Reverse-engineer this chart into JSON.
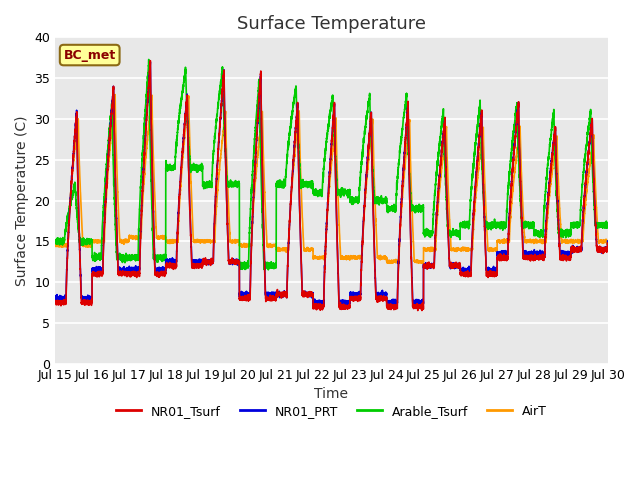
{
  "title": "Surface Temperature",
  "xlabel": "Time",
  "ylabel": "Surface Temperature (C)",
  "ylim": [
    0,
    40
  ],
  "xlim": [
    0,
    360
  ],
  "annotation_text": "BC_met",
  "legend": [
    "NR01_Tsurf",
    "NR01_PRT",
    "Arable_Tsurf",
    "AirT"
  ],
  "colors": [
    "#dd0000",
    "#0000dd",
    "#00cc00",
    "#ff9900"
  ],
  "xtick_labels": [
    "Jul 15",
    "Jul 16",
    "Jul 17",
    "Jul 18",
    "Jul 19",
    "Jul 20",
    "Jul 21",
    "Jul 22",
    "Jul 23",
    "Jul 24",
    "Jul 25",
    "Jul 26",
    "Jul 27",
    "Jul 28",
    "Jul 29",
    "Jul 30"
  ],
  "xtick_positions": [
    0,
    24,
    48,
    72,
    96,
    120,
    144,
    168,
    192,
    216,
    240,
    264,
    288,
    312,
    336,
    360
  ],
  "ytick_positions": [
    0,
    5,
    10,
    15,
    20,
    25,
    30,
    35,
    40
  ],
  "bg_color": "#e8e8e8",
  "fig_color": "#ffffff",
  "linewidth": 1.2,
  "day_peaks_tsurf": [
    31,
    34,
    37,
    33,
    36,
    36,
    32,
    32,
    31,
    32,
    30,
    31,
    32,
    29,
    30,
    30
  ],
  "day_troughs_tsurf": [
    7.5,
    11,
    11,
    12,
    12.5,
    8,
    8.5,
    7,
    8,
    7,
    12,
    11,
    13,
    13,
    14,
    15
  ],
  "day_peaks_prt": [
    31,
    34,
    37,
    33,
    36,
    35.5,
    32,
    32,
    31,
    32,
    30,
    31,
    32,
    29,
    30,
    30
  ],
  "day_troughs_prt": [
    8,
    11.5,
    11.5,
    12.5,
    12.5,
    8.5,
    8.5,
    7.5,
    8.5,
    7.5,
    12,
    11.5,
    13.5,
    13.5,
    14,
    15
  ],
  "day_peaks_arable": [
    22,
    32,
    37,
    36,
    36,
    35,
    34,
    33,
    33,
    33,
    31,
    32,
    32,
    31,
    31,
    31
  ],
  "day_troughs_arable": [
    15,
    13,
    13,
    24,
    22,
    12,
    22,
    21,
    20,
    19,
    16,
    17,
    17,
    16,
    17,
    17
  ],
  "day_peaks_airt": [
    30,
    33,
    33,
    33,
    31,
    31,
    31,
    30,
    30,
    30,
    29,
    29,
    29,
    28,
    28,
    28
  ],
  "day_troughs_airt": [
    14.5,
    15,
    15.5,
    15,
    15,
    14.5,
    14,
    13,
    13,
    12.5,
    14,
    14,
    15,
    15,
    15,
    15
  ]
}
